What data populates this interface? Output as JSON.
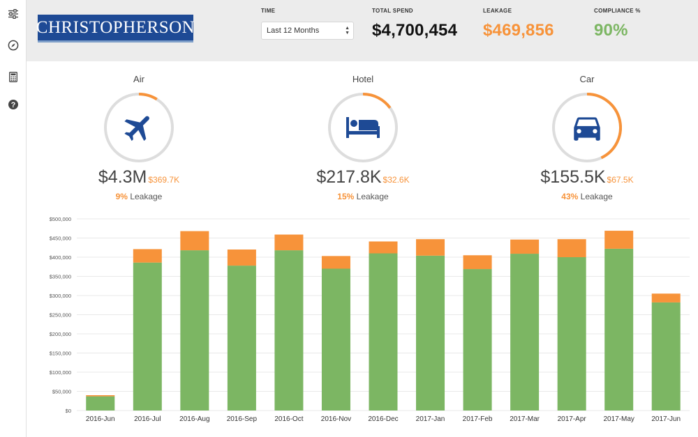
{
  "sidebar": {
    "items": [
      {
        "icon": "sliders-icon"
      },
      {
        "icon": "compass-icon"
      },
      {
        "icon": "calculator-icon"
      },
      {
        "icon": "help-icon"
      }
    ]
  },
  "header": {
    "logo_text": "CHRISTOPHERSON",
    "time": {
      "label": "TIME",
      "selected": "Last 12 Months"
    },
    "total_spend": {
      "label": "TOTAL SPEND",
      "value": "$4,700,454"
    },
    "leakage": {
      "label": "LEAKAGE",
      "value": "$469,856"
    },
    "compliance": {
      "label": "COMPLIANCE %",
      "value": "90%"
    }
  },
  "categories": [
    {
      "title": "Air",
      "icon": "airplane-icon",
      "value": "$4.3M",
      "leak_value": "$369.7K",
      "leak_pct": "9%",
      "leak_fraction": 0.09,
      "leak_text": "Leakage"
    },
    {
      "title": "Hotel",
      "icon": "bed-icon",
      "value": "$217.8K",
      "leak_value": "$32.6K",
      "leak_pct": "15%",
      "leak_fraction": 0.15,
      "leak_text": "Leakage"
    },
    {
      "title": "Car",
      "icon": "car-icon",
      "value": "$155.5K",
      "leak_value": "$67.5K",
      "leak_pct": "43%",
      "leak_fraction": 0.43,
      "leak_text": "Leakage"
    }
  ],
  "colors": {
    "compliant": "#7cb663",
    "leakage": "#f7933a",
    "brand": "#1e4a95",
    "total_spend": "#111111",
    "compliance": "#7cb663",
    "icon": "#1e4a95",
    "ring": "#dddddd"
  },
  "chart_data": {
    "type": "bar",
    "stacked": true,
    "categories": [
      "2016-Jun",
      "2016-Jul",
      "2016-Aug",
      "2016-Sep",
      "2016-Oct",
      "2016-Nov",
      "2016-Dec",
      "2017-Jan",
      "2017-Feb",
      "2017-Mar",
      "2017-Apr",
      "2017-May",
      "2017-Jun"
    ],
    "series": [
      {
        "values": [
          37000,
          386000,
          418000,
          378000,
          418000,
          370000,
          410000,
          404000,
          369000,
          409000,
          400000,
          422000,
          282000
        ]
      },
      {
        "values": [
          3000,
          35000,
          50000,
          42000,
          41000,
          33000,
          31000,
          43000,
          36000,
          37000,
          47000,
          47000,
          23000
        ]
      }
    ],
    "yticks": [
      "$0",
      "$50,000",
      "$100,000",
      "$150,000",
      "$200,000",
      "$250,000",
      "$300,000",
      "$350,000",
      "$400,000",
      "$450,000",
      "$500,000"
    ],
    "ylim": [
      0,
      500000
    ],
    "grid": true
  }
}
